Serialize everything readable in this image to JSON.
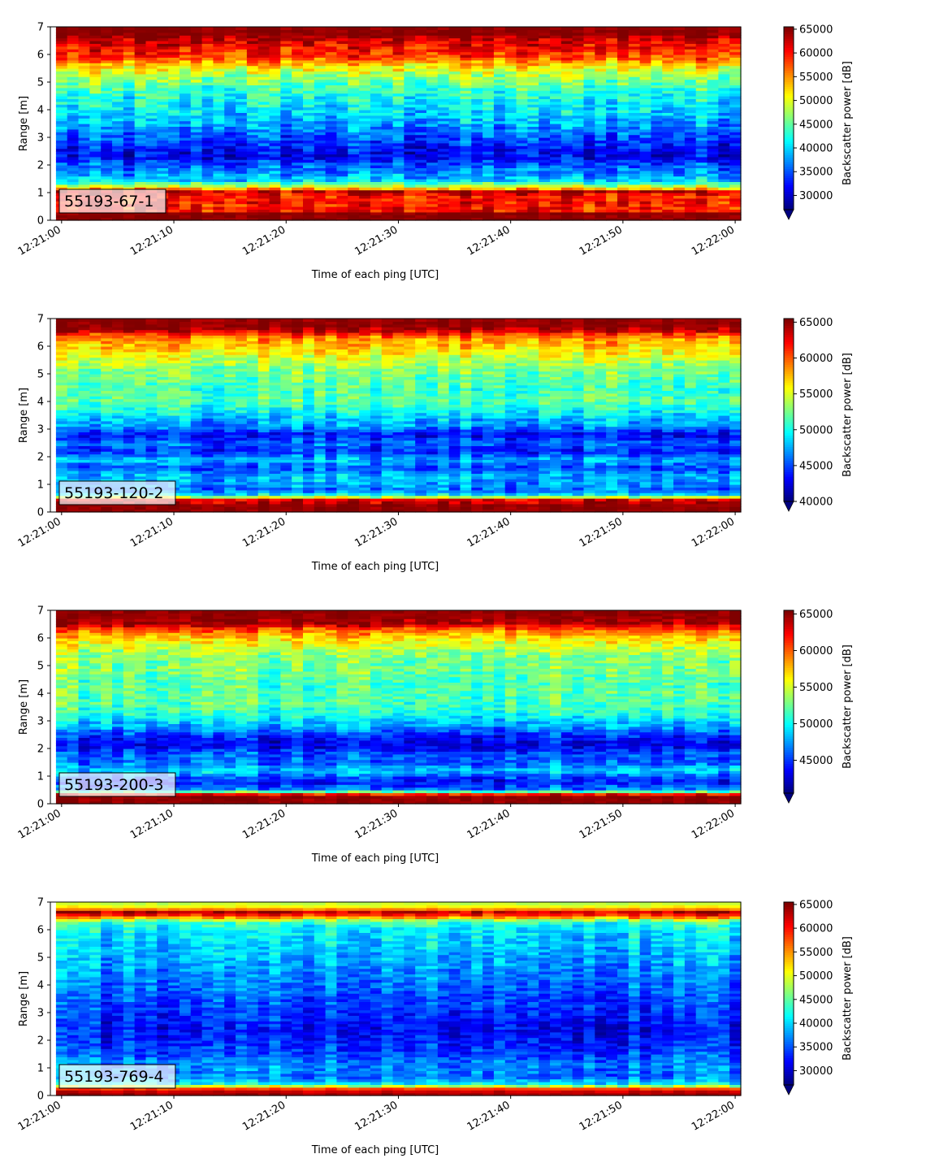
{
  "chart_data": [
    {
      "type": "heatmap",
      "panel_label": "55193-67-1",
      "xlabel": "Time of each ping [UTC]",
      "ylabel": "Range [m]",
      "x_ticks": [
        "12:21:00",
        "12:21:10",
        "12:21:20",
        "12:21:30",
        "12:21:40",
        "12:21:50",
        "12:22:00"
      ],
      "y_ticks": [
        0,
        1,
        2,
        3,
        4,
        5,
        6,
        7
      ],
      "ylim": [
        0,
        7
      ],
      "colorbar": {
        "label": "Backscatter power [dB]",
        "ticks": [
          30000,
          35000,
          40000,
          45000,
          50000,
          55000,
          60000,
          65000
        ],
        "min": 27000,
        "max": 65500,
        "extend": "min",
        "colormap": "jet"
      },
      "profile": [
        [
          0,
          65000
        ],
        [
          0.25,
          65000
        ],
        [
          0.3,
          60000
        ],
        [
          0.9,
          60000
        ],
        [
          1.05,
          63000
        ],
        [
          1.2,
          50000
        ],
        [
          1.45,
          40000
        ],
        [
          1.7,
          37000
        ],
        [
          2.0,
          35000
        ],
        [
          2.3,
          31000
        ],
        [
          2.6,
          32000
        ],
        [
          2.9,
          34000
        ],
        [
          3.2,
          36000
        ],
        [
          3.5,
          38000
        ],
        [
          3.9,
          40000
        ],
        [
          4.2,
          41000
        ],
        [
          4.5,
          42000
        ],
        [
          4.8,
          44000
        ],
        [
          5.2,
          47000
        ],
        [
          5.6,
          52000
        ],
        [
          5.9,
          58000
        ],
        [
          6.3,
          61000
        ],
        [
          6.6,
          63000
        ],
        [
          6.7,
          65000
        ],
        [
          7.0,
          65000
        ]
      ],
      "noise": 6000
    },
    {
      "type": "heatmap",
      "panel_label": "55193-120-2",
      "xlabel": "Time of each ping [UTC]",
      "ylabel": "Range [m]",
      "x_ticks": [
        "12:21:00",
        "12:21:10",
        "12:21:20",
        "12:21:30",
        "12:21:40",
        "12:21:50",
        "12:22:00"
      ],
      "y_ticks": [
        0,
        1,
        2,
        3,
        4,
        5,
        6,
        7
      ],
      "ylim": [
        0,
        7
      ],
      "colorbar": {
        "label": "Backscatter power [dB]",
        "ticks": [
          40000,
          45000,
          50000,
          55000,
          60000,
          65000
        ],
        "min": 40000,
        "max": 65500,
        "extend": "min",
        "colormap": "jet"
      },
      "profile": [
        [
          0,
          65000
        ],
        [
          0.3,
          65000
        ],
        [
          0.45,
          63000
        ],
        [
          0.6,
          50000
        ],
        [
          0.8,
          46000
        ],
        [
          1.0,
          47000
        ],
        [
          1.3,
          48000
        ],
        [
          1.6,
          45000
        ],
        [
          1.9,
          48000
        ],
        [
          2.2,
          44000
        ],
        [
          2.5,
          46000
        ],
        [
          2.8,
          43000
        ],
        [
          3.1,
          47000
        ],
        [
          3.4,
          48000
        ],
        [
          3.7,
          50000
        ],
        [
          4.0,
          52000
        ],
        [
          4.4,
          51000
        ],
        [
          4.8,
          52000
        ],
        [
          5.2,
          53000
        ],
        [
          5.6,
          55000
        ],
        [
          5.9,
          57000
        ],
        [
          6.2,
          58000
        ],
        [
          6.45,
          61000
        ],
        [
          6.6,
          65000
        ],
        [
          7.0,
          65000
        ]
      ],
      "noise": 3500
    },
    {
      "type": "heatmap",
      "panel_label": "55193-200-3",
      "xlabel": "Time of each ping [UTC]",
      "ylabel": "Range [m]",
      "x_ticks": [
        "12:21:00",
        "12:21:10",
        "12:21:20",
        "12:21:30",
        "12:21:40",
        "12:21:50",
        "12:22:00"
      ],
      "y_ticks": [
        0,
        1,
        2,
        3,
        4,
        5,
        6,
        7
      ],
      "ylim": [
        0,
        7
      ],
      "colorbar": {
        "label": "Backscatter power [dB]",
        "ticks": [
          45000,
          50000,
          55000,
          60000,
          65000
        ],
        "min": 40500,
        "max": 65500,
        "extend": "min",
        "colormap": "jet"
      },
      "profile": [
        [
          0,
          65000
        ],
        [
          0.25,
          65000
        ],
        [
          0.35,
          62000
        ],
        [
          0.5,
          47000
        ],
        [
          0.8,
          44000
        ],
        [
          1.0,
          46000
        ],
        [
          1.2,
          49000
        ],
        [
          1.5,
          46000
        ],
        [
          1.8,
          46000
        ],
        [
          2.1,
          43000
        ],
        [
          2.4,
          44000
        ],
        [
          2.7,
          47000
        ],
        [
          3.0,
          49000
        ],
        [
          3.3,
          51000
        ],
        [
          3.7,
          52000
        ],
        [
          4.1,
          52000
        ],
        [
          4.5,
          52000
        ],
        [
          4.9,
          53000
        ],
        [
          5.3,
          53000
        ],
        [
          5.7,
          55000
        ],
        [
          6.0,
          57000
        ],
        [
          6.3,
          60000
        ],
        [
          6.55,
          65000
        ],
        [
          7.0,
          65000
        ]
      ],
      "noise": 3500
    },
    {
      "type": "heatmap",
      "panel_label": "55193-769-4",
      "xlabel": "Time of each ping [UTC]",
      "ylabel": "Range [m]",
      "x_ticks": [
        "12:21:00",
        "12:21:10",
        "12:21:20",
        "12:21:30",
        "12:21:40",
        "12:21:50",
        "12:22:00"
      ],
      "y_ticks": [
        0,
        1,
        2,
        3,
        4,
        5,
        6,
        7
      ],
      "ylim": [
        0,
        7
      ],
      "colorbar": {
        "label": "Backscatter power [dB]",
        "ticks": [
          30000,
          35000,
          40000,
          45000,
          50000,
          55000,
          60000,
          65000
        ],
        "min": 27000,
        "max": 65500,
        "extend": "min",
        "colormap": "jet"
      },
      "profile": [
        [
          0,
          65000
        ],
        [
          0.2,
          62000
        ],
        [
          0.3,
          55000
        ],
        [
          0.4,
          42000
        ],
        [
          0.7,
          36000
        ],
        [
          1.0,
          37000
        ],
        [
          1.3,
          36000
        ],
        [
          1.6,
          34000
        ],
        [
          2.0,
          33000
        ],
        [
          2.4,
          32000
        ],
        [
          2.8,
          33000
        ],
        [
          3.2,
          34000
        ],
        [
          3.6,
          35000
        ],
        [
          4.0,
          36000
        ],
        [
          4.4,
          37000
        ],
        [
          4.8,
          38000
        ],
        [
          5.2,
          39000
        ],
        [
          5.6,
          40000
        ],
        [
          6.0,
          41000
        ],
        [
          6.3,
          44000
        ],
        [
          6.5,
          58000
        ],
        [
          6.65,
          63000
        ],
        [
          6.8,
          52000
        ],
        [
          7.0,
          48000
        ]
      ],
      "noise": 5000
    }
  ]
}
